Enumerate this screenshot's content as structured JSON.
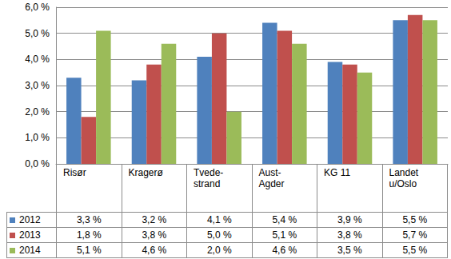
{
  "chart_data": {
    "type": "bar",
    "categories": [
      "Risør",
      "Kragerø",
      "Tvede-\nstrand",
      "Aust-\nAgder",
      "KG 11",
      "Landet\nu/Oslo"
    ],
    "series": [
      {
        "name": "2012",
        "color": "#4F81BD",
        "values": [
          3.3,
          3.2,
          4.1,
          5.4,
          3.9,
          5.5
        ],
        "value_labels": [
          "3,3 %",
          "3,2 %",
          "4,1 %",
          "5,4 %",
          "3,9 %",
          "5,5 %"
        ]
      },
      {
        "name": "2013",
        "color": "#C0504D",
        "values": [
          1.8,
          3.8,
          5.0,
          5.1,
          3.8,
          5.7
        ],
        "value_labels": [
          "1,8 %",
          "3,8 %",
          "5,0 %",
          "5,1 %",
          "3,8 %",
          "5,7 %"
        ]
      },
      {
        "name": "2014",
        "color": "#9BBB59",
        "values": [
          5.1,
          4.6,
          2.0,
          4.6,
          3.5,
          5.5
        ],
        "value_labels": [
          "5,1 %",
          "4,6 %",
          "2,0 %",
          "4,6 %",
          "3,5 %",
          "5,5 %"
        ]
      }
    ],
    "ylim": [
      0,
      6
    ],
    "yticks": [
      {
        "value": 0,
        "label": "0,0 %"
      },
      {
        "value": 1,
        "label": "1,0 %"
      },
      {
        "value": 2,
        "label": "2,0 %"
      },
      {
        "value": 3,
        "label": "3,0 %"
      },
      {
        "value": 4,
        "label": "4,0 %"
      },
      {
        "value": 5,
        "label": "5,0 %"
      },
      {
        "value": 6,
        "label": "6,0 %"
      }
    ],
    "grid": true
  }
}
